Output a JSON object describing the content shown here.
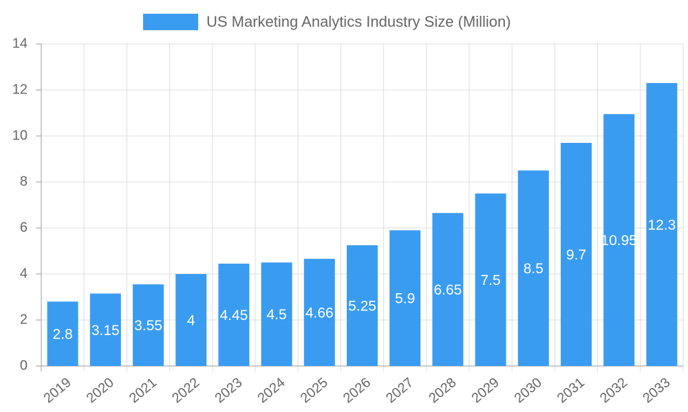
{
  "chart_data": {
    "type": "bar",
    "legend_label": "US Marketing Analytics Industry Size (Million)",
    "categories": [
      "2019",
      "2020",
      "2021",
      "2022",
      "2023",
      "2024",
      "2025",
      "2026",
      "2027",
      "2028",
      "2029",
      "2030",
      "2031",
      "2032",
      "2033"
    ],
    "values": [
      2.8,
      3.15,
      3.55,
      4,
      4.45,
      4.5,
      4.66,
      5.25,
      5.9,
      6.65,
      7.5,
      8.5,
      9.7,
      10.95,
      12.3
    ],
    "color": "#3a9cf0",
    "ylim": [
      0,
      14
    ],
    "yticks": [
      0,
      2,
      4,
      6,
      8,
      10,
      12,
      14
    ],
    "grid": true,
    "legend": "top"
  }
}
